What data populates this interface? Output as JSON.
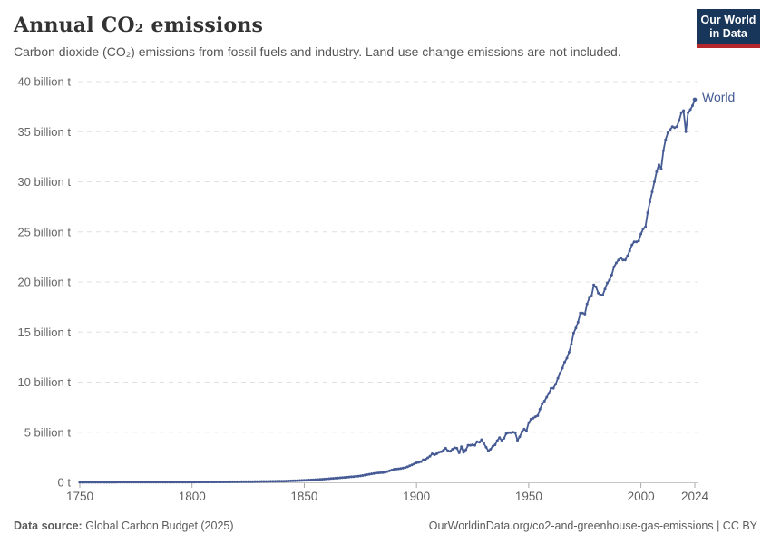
{
  "header": {
    "title": "Annual CO₂ emissions",
    "subtitle": "Carbon dioxide (CO₂) emissions from fossil fuels and industry. Land-use change emissions are not included.",
    "logo": {
      "line1": "Our World",
      "line2": "in Data"
    }
  },
  "footer": {
    "source_label": "Data source:",
    "source_value": "Global Carbon Budget (2025)",
    "url": "OurWorldinData.org/co2-and-greenhouse-gas-emissions",
    "sep_license": "| CC BY"
  },
  "colors": {
    "series_blue": "#465b94",
    "logo_navy": "#18355a",
    "logo_red": "#b4282d",
    "gridline_gray": "#e0e0e0",
    "axis_text_gray": "#666666"
  },
  "chart_data": {
    "type": "line",
    "title": "Annual CO₂ emissions",
    "xlabel": "",
    "ylabel": "",
    "unit": "billion t",
    "xlim": [
      1750,
      2024
    ],
    "ylim": [
      0,
      40
    ],
    "grid": "dashed-horizontal",
    "legend_position": "end-of-line",
    "x_ticks": [
      {
        "year": 1750,
        "label": "1750"
      },
      {
        "year": 1800,
        "label": "1800"
      },
      {
        "year": 1850,
        "label": "1850"
      },
      {
        "year": 1900,
        "label": "1900"
      },
      {
        "year": 1950,
        "label": "1950"
      },
      {
        "year": 2000,
        "label": "2000"
      },
      {
        "year": 2024,
        "label": "2024"
      }
    ],
    "y_ticks": [
      {
        "value": 0,
        "label": "0 t"
      },
      {
        "value": 5,
        "label": "5 billion t"
      },
      {
        "value": 10,
        "label": "10 billion t"
      },
      {
        "value": 15,
        "label": "15 billion t"
      },
      {
        "value": 20,
        "label": "20 billion t"
      },
      {
        "value": 25,
        "label": "25 billion t"
      },
      {
        "value": 30,
        "label": "30 billion t"
      },
      {
        "value": 35,
        "label": "35 billion t"
      },
      {
        "value": 40,
        "label": "40 billion t"
      }
    ],
    "series": [
      {
        "name": "World",
        "color": "#465b94",
        "points": [
          [
            1750,
            0.01
          ],
          [
            1760,
            0.011
          ],
          [
            1770,
            0.015
          ],
          [
            1780,
            0.019
          ],
          [
            1790,
            0.025
          ],
          [
            1800,
            0.03
          ],
          [
            1810,
            0.04
          ],
          [
            1820,
            0.054
          ],
          [
            1830,
            0.084
          ],
          [
            1840,
            0.11
          ],
          [
            1850,
            0.2
          ],
          [
            1855,
            0.26
          ],
          [
            1860,
            0.34
          ],
          [
            1865,
            0.43
          ],
          [
            1870,
            0.53
          ],
          [
            1875,
            0.64
          ],
          [
            1880,
            0.85
          ],
          [
            1882,
            0.92
          ],
          [
            1884,
            0.96
          ],
          [
            1886,
            1.0
          ],
          [
            1888,
            1.15
          ],
          [
            1890,
            1.3
          ],
          [
            1892,
            1.35
          ],
          [
            1894,
            1.42
          ],
          [
            1896,
            1.55
          ],
          [
            1898,
            1.75
          ],
          [
            1900,
            1.95
          ],
          [
            1901,
            2.0
          ],
          [
            1902,
            2.05
          ],
          [
            1903,
            2.25
          ],
          [
            1904,
            2.3
          ],
          [
            1905,
            2.44
          ],
          [
            1906,
            2.6
          ],
          [
            1907,
            2.85
          ],
          [
            1908,
            2.75
          ],
          [
            1909,
            2.85
          ],
          [
            1910,
            3.0
          ],
          [
            1911,
            3.05
          ],
          [
            1912,
            3.2
          ],
          [
            1913,
            3.4
          ],
          [
            1914,
            3.15
          ],
          [
            1915,
            3.1
          ],
          [
            1916,
            3.3
          ],
          [
            1917,
            3.45
          ],
          [
            1918,
            3.4
          ],
          [
            1919,
            2.95
          ],
          [
            1920,
            3.55
          ],
          [
            1921,
            3.0
          ],
          [
            1922,
            3.25
          ],
          [
            1923,
            3.7
          ],
          [
            1924,
            3.7
          ],
          [
            1925,
            3.75
          ],
          [
            1926,
            3.7
          ],
          [
            1927,
            4.05
          ],
          [
            1928,
            4.0
          ],
          [
            1929,
            4.25
          ],
          [
            1930,
            3.9
          ],
          [
            1931,
            3.5
          ],
          [
            1932,
            3.15
          ],
          [
            1933,
            3.3
          ],
          [
            1934,
            3.6
          ],
          [
            1935,
            3.75
          ],
          [
            1936,
            4.15
          ],
          [
            1937,
            4.45
          ],
          [
            1938,
            4.2
          ],
          [
            1939,
            4.4
          ],
          [
            1940,
            4.85
          ],
          [
            1941,
            4.95
          ],
          [
            1942,
            4.95
          ],
          [
            1943,
            5.0
          ],
          [
            1944,
            4.95
          ],
          [
            1945,
            4.2
          ],
          [
            1946,
            4.55
          ],
          [
            1947,
            5.05
          ],
          [
            1948,
            5.3
          ],
          [
            1949,
            5.15
          ],
          [
            1950,
            5.95
          ],
          [
            1951,
            6.3
          ],
          [
            1952,
            6.4
          ],
          [
            1953,
            6.55
          ],
          [
            1954,
            6.65
          ],
          [
            1955,
            7.3
          ],
          [
            1956,
            7.8
          ],
          [
            1957,
            8.1
          ],
          [
            1958,
            8.5
          ],
          [
            1959,
            8.9
          ],
          [
            1960,
            9.4
          ],
          [
            1961,
            9.4
          ],
          [
            1962,
            9.8
          ],
          [
            1963,
            10.4
          ],
          [
            1964,
            10.9
          ],
          [
            1965,
            11.4
          ],
          [
            1966,
            12.0
          ],
          [
            1967,
            12.4
          ],
          [
            1968,
            13.0
          ],
          [
            1969,
            13.8
          ],
          [
            1970,
            14.9
          ],
          [
            1971,
            15.4
          ],
          [
            1972,
            16.0
          ],
          [
            1973,
            16.9
          ],
          [
            1974,
            16.9
          ],
          [
            1975,
            16.8
          ],
          [
            1976,
            17.8
          ],
          [
            1977,
            18.4
          ],
          [
            1978,
            18.6
          ],
          [
            1979,
            19.7
          ],
          [
            1980,
            19.5
          ],
          [
            1981,
            18.9
          ],
          [
            1982,
            18.7
          ],
          [
            1983,
            18.7
          ],
          [
            1984,
            19.3
          ],
          [
            1985,
            19.9
          ],
          [
            1986,
            20.2
          ],
          [
            1987,
            20.7
          ],
          [
            1988,
            21.5
          ],
          [
            1989,
            21.9
          ],
          [
            1990,
            22.2
          ],
          [
            1991,
            22.4
          ],
          [
            1992,
            22.2
          ],
          [
            1993,
            22.2
          ],
          [
            1994,
            22.6
          ],
          [
            1995,
            23.1
          ],
          [
            1996,
            23.7
          ],
          [
            1997,
            24.0
          ],
          [
            1998,
            24.0
          ],
          [
            1999,
            24.1
          ],
          [
            2000,
            24.8
          ],
          [
            2001,
            25.3
          ],
          [
            2002,
            25.5
          ],
          [
            2003,
            26.9
          ],
          [
            2004,
            28.0
          ],
          [
            2005,
            29.0
          ],
          [
            2006,
            30.0
          ],
          [
            2007,
            31.0
          ],
          [
            2008,
            31.7
          ],
          [
            2009,
            31.3
          ],
          [
            2010,
            33.1
          ],
          [
            2011,
            34.2
          ],
          [
            2012,
            34.9
          ],
          [
            2013,
            35.2
          ],
          [
            2014,
            35.5
          ],
          [
            2015,
            35.4
          ],
          [
            2016,
            35.5
          ],
          [
            2017,
            36.1
          ],
          [
            2018,
            36.9
          ],
          [
            2019,
            37.1
          ],
          [
            2020,
            35.0
          ],
          [
            2021,
            36.9
          ],
          [
            2022,
            37.2
          ],
          [
            2023,
            37.6
          ],
          [
            2024,
            38.2
          ]
        ]
      }
    ]
  }
}
